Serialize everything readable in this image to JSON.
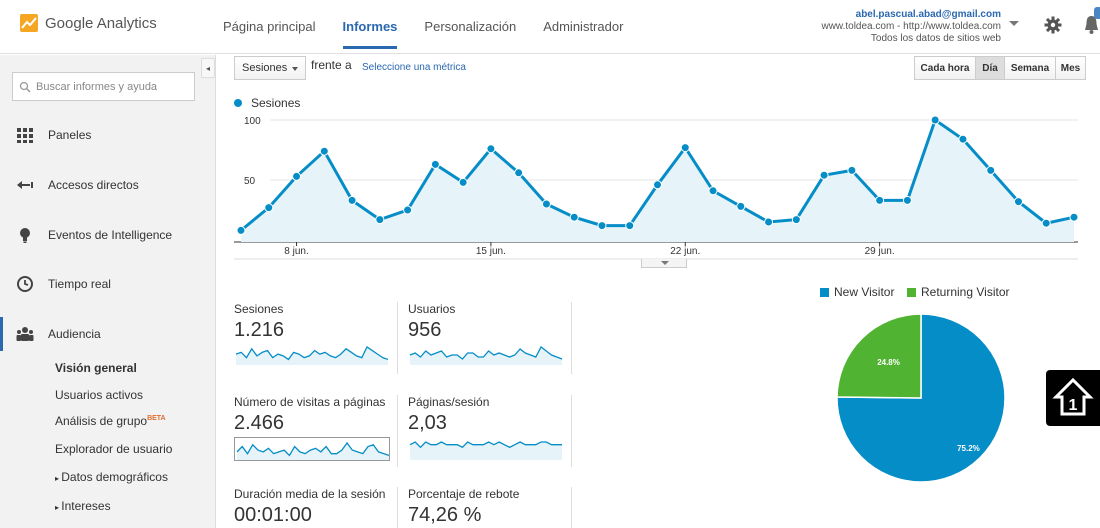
{
  "header": {
    "brand": "Google Analytics",
    "nav": [
      "Página principal",
      "Informes",
      "Personalización",
      "Administrador"
    ],
    "active_nav": 1,
    "account": {
      "email": "abel.pascual.abad@gmail.com",
      "site": "www.toldea.com - http://www.toldea.com",
      "view": "Todos los datos de sitios web"
    }
  },
  "sidebar": {
    "search_placeholder": "Buscar informes y ayuda",
    "items": [
      {
        "label": "Paneles",
        "icon": "grid-icon"
      },
      {
        "label": "Accesos directos",
        "icon": "shortcut-arrow-icon"
      },
      {
        "label": "Eventos de Intelligence",
        "icon": "lightbulb-icon"
      },
      {
        "label": "Tiempo real",
        "icon": "clock-icon"
      },
      {
        "label": "Audiencia",
        "icon": "people-icon"
      }
    ],
    "subitems": [
      {
        "label": "Visión general"
      },
      {
        "label": "Usuarios activos"
      },
      {
        "label": "Análisis de grupo",
        "badge": "BETA"
      },
      {
        "label": "Explorador de usuario"
      },
      {
        "label": "Datos demográficos"
      },
      {
        "label": "Intereses"
      }
    ]
  },
  "controls": {
    "metric_select": "Sesiones",
    "compare_text": "frente a",
    "compare_link": "Seleccione una métrica",
    "ranges": [
      "Cada hora",
      "Día",
      "Semana",
      "Mes"
    ],
    "active_range": 1
  },
  "chart_data": {
    "type": "area",
    "series": [
      {
        "name": "Sesiones",
        "color": "#058dc7",
        "values": [
          8,
          27,
          53,
          74,
          33,
          17,
          25,
          63,
          48,
          76,
          56,
          30,
          19,
          12,
          12,
          46,
          77,
          41,
          28,
          15,
          17,
          54,
          58,
          33,
          33,
          100,
          84,
          58,
          32,
          14,
          19
        ]
      }
    ],
    "x_tick_labels": [
      "8 jun.",
      "15 jun.",
      "22 jun.",
      "29 jun."
    ],
    "x_tick_index": [
      2,
      9,
      16,
      23
    ],
    "y_tick_labels": [
      "100",
      "50"
    ],
    "y_tick_values": [
      100,
      50
    ],
    "ylim": [
      0,
      100
    ],
    "grid": true
  },
  "metrics": [
    {
      "label": "Sesiones",
      "value": "1.216",
      "spark": [
        5,
        6,
        3,
        8,
        4,
        6,
        7,
        3,
        5,
        4,
        2,
        6,
        5,
        3,
        4,
        7,
        5,
        6,
        4,
        3,
        5,
        8,
        6,
        4,
        3,
        9,
        7,
        5,
        3,
        2
      ]
    },
    {
      "label": "Usuarios",
      "value": "956",
      "spark": [
        4,
        5,
        3,
        6,
        4,
        5,
        6,
        3,
        4,
        4,
        2,
        5,
        5,
        3,
        3,
        6,
        4,
        5,
        4,
        3,
        4,
        7,
        5,
        4,
        3,
        8,
        6,
        4,
        3,
        2
      ]
    },
    {
      "label": "Número de visitas a páginas",
      "value": "2.466",
      "spark": [
        4,
        7,
        3,
        8,
        5,
        4,
        6,
        3,
        4,
        5,
        2,
        7,
        4,
        3,
        5,
        6,
        4,
        7,
        3,
        3,
        5,
        9,
        5,
        4,
        3,
        7,
        8,
        4,
        3,
        2
      ]
    },
    {
      "label": "Páginas/sesión",
      "value": "2,03",
      "spark": [
        5,
        6,
        4,
        6,
        5,
        5,
        6,
        5,
        5,
        5,
        4,
        6,
        5,
        5,
        5,
        6,
        5,
        6,
        5,
        4,
        5,
        6,
        5,
        5,
        5,
        6,
        6,
        5,
        5,
        5
      ]
    },
    {
      "label": "Duración media de la sesión",
      "value": "00:01:00"
    },
    {
      "label": "Porcentaje de rebote",
      "value": "74,26 %"
    }
  ],
  "pie_chart_data": {
    "type": "pie",
    "slices": [
      {
        "label": "New Visitor",
        "value": 75.2,
        "color": "#058dc7",
        "display": "75.2%"
      },
      {
        "label": "Returning Visitor",
        "value": 24.8,
        "color": "#50b432",
        "display": "24.8%"
      }
    ]
  }
}
